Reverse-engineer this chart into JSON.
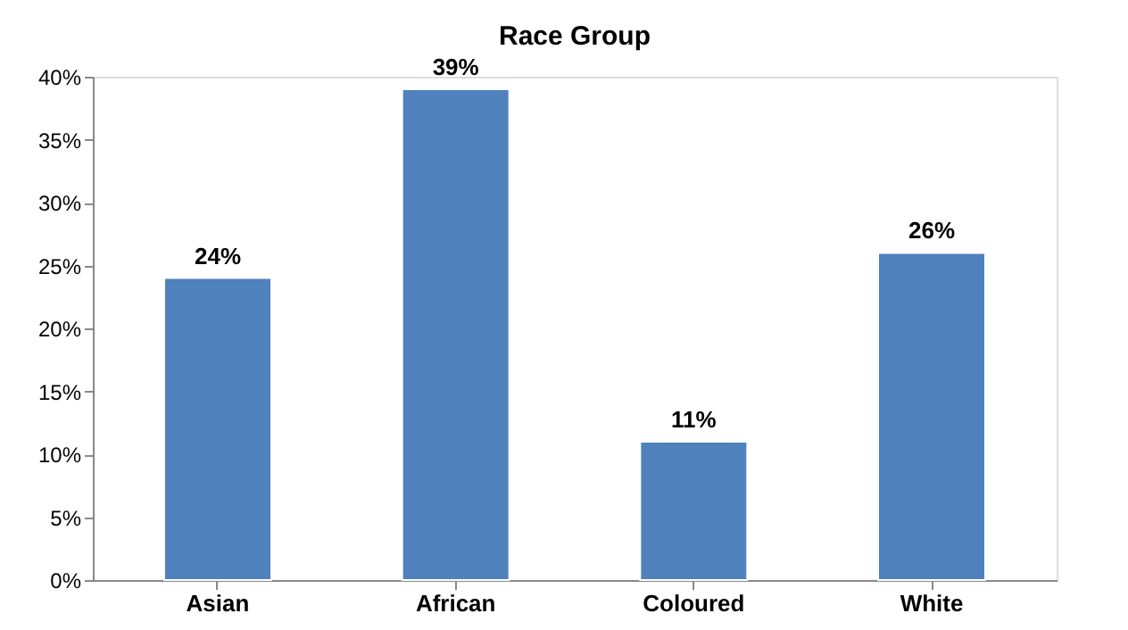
{
  "chart_data": {
    "type": "bar",
    "title": "Race Group",
    "categories": [
      "Asian",
      "African",
      "Coloured",
      "White"
    ],
    "values": [
      24,
      39,
      11,
      26
    ],
    "value_labels": [
      "24%",
      "39%",
      "11%",
      "26%"
    ],
    "color": "#4f81bd",
    "ylim": [
      0,
      40
    ],
    "yticks": [
      {
        "value": 0,
        "label": "0%"
      },
      {
        "value": 5,
        "label": "5%"
      },
      {
        "value": 10,
        "label": "10%"
      },
      {
        "value": 15,
        "label": "15%"
      },
      {
        "value": 20,
        "label": "20%"
      },
      {
        "value": 25,
        "label": "25%"
      },
      {
        "value": 30,
        "label": "30%"
      },
      {
        "value": 35,
        "label": "35%"
      },
      {
        "value": 40,
        "label": "40%"
      }
    ],
    "grid": false
  }
}
